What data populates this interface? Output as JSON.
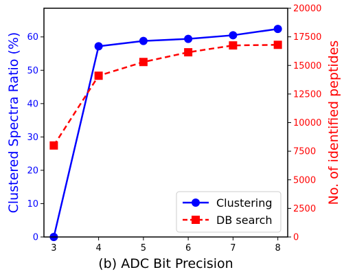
{
  "chart_data": {
    "type": "line",
    "xlabel": "(b) ADC Bit Precision",
    "ylabel_left": "Clustered Spectra Ratio (%)",
    "ylabel_right": "No. of identified peptides",
    "x": [
      3,
      4,
      5,
      6,
      7,
      8
    ],
    "xticks": [
      "3",
      "4",
      "5",
      "6",
      "7",
      "8"
    ],
    "ylim_left": [
      0,
      68.6
    ],
    "ylim_right": [
      0,
      20000
    ],
    "yticks_left": [
      "0",
      "10",
      "20",
      "30",
      "40",
      "50",
      "60"
    ],
    "yticks_right": [
      "0",
      "2500",
      "5000",
      "7500",
      "10000",
      "12500",
      "15000",
      "17500",
      "20000"
    ],
    "series": [
      {
        "name": "Clustering",
        "axis": "left",
        "color": "#0000ff",
        "marker": "circle",
        "style": "solid",
        "values": [
          0.0,
          57.2,
          58.8,
          59.4,
          60.5,
          62.4
        ]
      },
      {
        "name": "DB search",
        "axis": "right",
        "color": "#ff0000",
        "marker": "square",
        "style": "dashed",
        "values": [
          8000,
          14100,
          15300,
          16150,
          16750,
          16800
        ]
      }
    ],
    "legend": "bottom-right",
    "grid": false
  }
}
